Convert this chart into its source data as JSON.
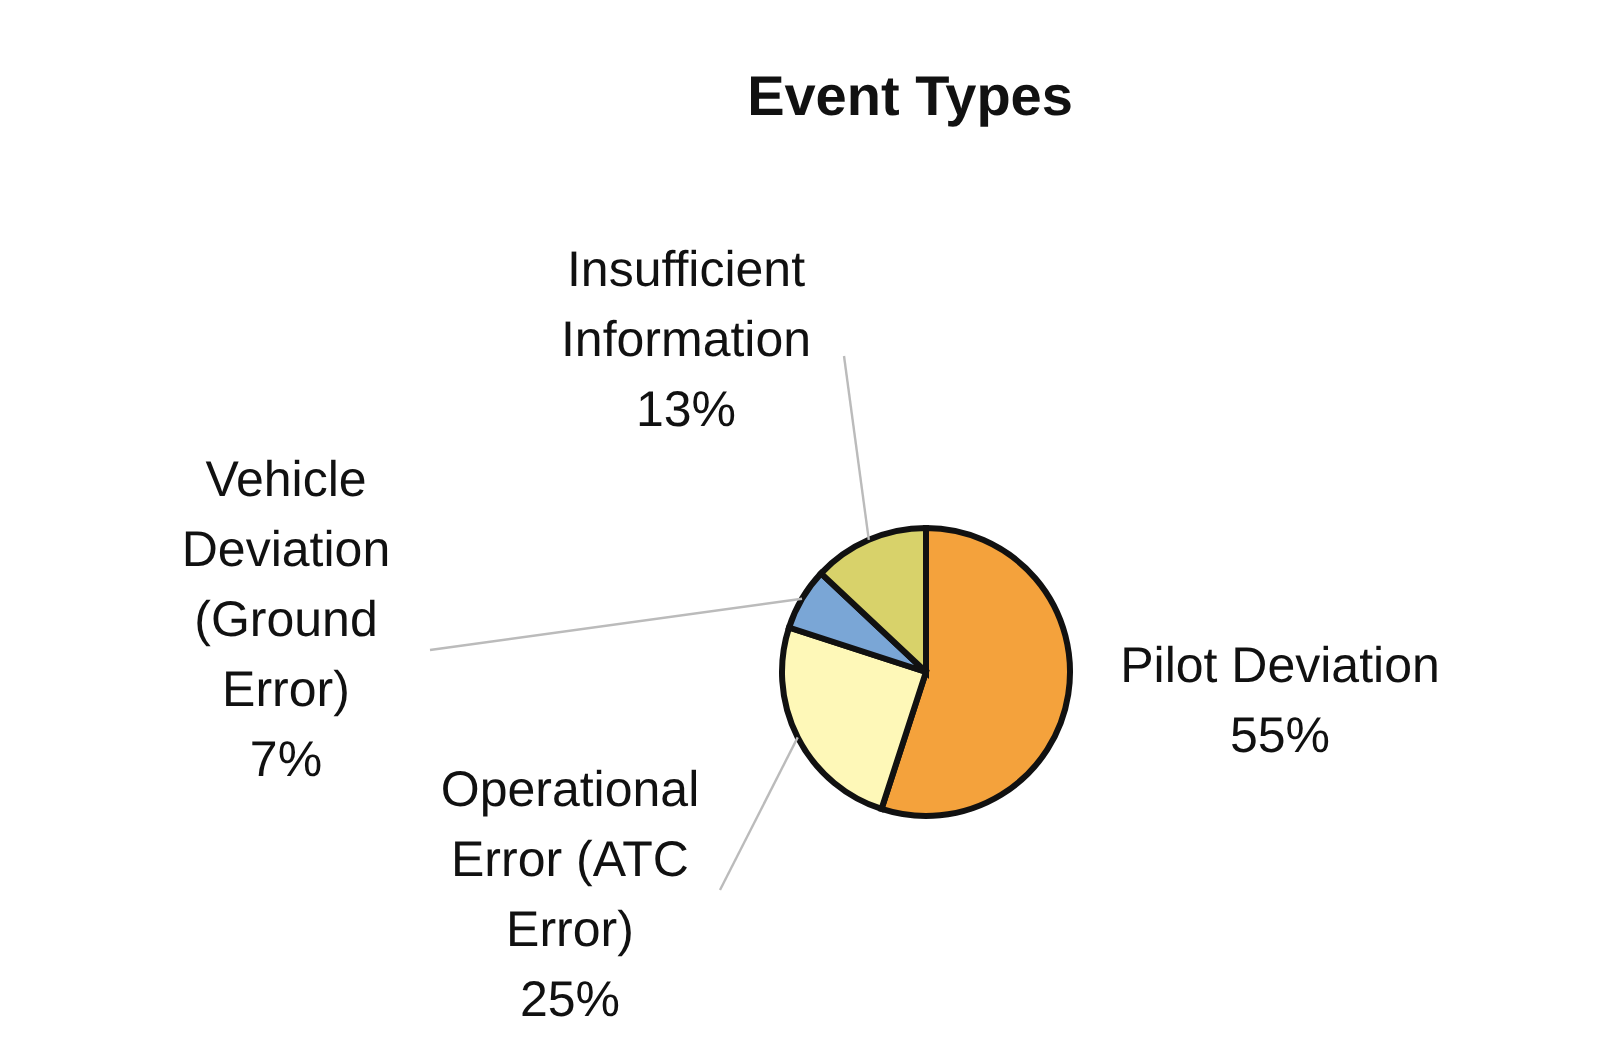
{
  "chart_data": {
    "type": "pie",
    "title": "Event Types",
    "categories": [
      "Pilot Deviation",
      "Operational Error (ATC Error)",
      "Vehicle Deviation (Ground Error)",
      "Insufficient Information"
    ],
    "values": [
      55,
      25,
      7,
      13
    ],
    "value_labels": [
      "55%",
      "25%",
      "7%",
      "13%"
    ],
    "colors": [
      "#f4a23c",
      "#fef8b8",
      "#7aa6d6",
      "#d8d26a"
    ],
    "legend": false
  }
}
